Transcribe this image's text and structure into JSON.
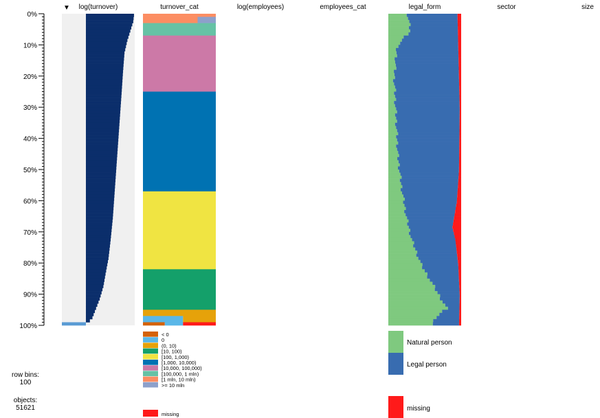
{
  "chart_data": {
    "type": "tableplot",
    "title_partial": "",
    "sort_indicator": "▼",
    "sorted_by": "log(turnover)",
    "columns": [
      "log(turnover)",
      "turnover_cat",
      "log(employees)",
      "employees_cat",
      "legal_form",
      "sector",
      "size"
    ],
    "y_axis": {
      "ticks": [
        "0%",
        "10%",
        "20%",
        "30%",
        "40%",
        "50%",
        "60%",
        "70%",
        "80%",
        "90%",
        "100%"
      ],
      "minor_ticks_per_interval": 10
    },
    "row_bins": 100,
    "objects": 51621,
    "log_turnover": {
      "description_values": "bar right edge as fraction of column width per row bin",
      "bar_left": 0.33,
      "profile": [
        [
          0,
          0.99
        ],
        [
          2,
          0.98
        ],
        [
          5,
          0.94
        ],
        [
          8,
          0.9
        ],
        [
          12,
          0.86
        ],
        [
          18,
          0.84
        ],
        [
          25,
          0.82
        ],
        [
          35,
          0.79
        ],
        [
          45,
          0.76
        ],
        [
          55,
          0.73
        ],
        [
          65,
          0.7
        ],
        [
          72,
          0.67
        ],
        [
          78,
          0.64
        ],
        [
          83,
          0.6
        ],
        [
          87,
          0.57
        ],
        [
          91,
          0.52
        ],
        [
          94,
          0.47
        ],
        [
          97,
          0.42
        ],
        [
          99,
          0.35
        ]
      ],
      "last_bin": {
        "left": 0.0,
        "right": 0.33,
        "color": "#5a9bd4"
      },
      "colors": {
        "bar": "#0b2e6b",
        "background": "#f0f0f0"
      }
    },
    "turnover_cat": {
      "categories": [
        "< 0",
        "0",
        "(0, 10)",
        "[10, 100)",
        "[100, 1,000)",
        "[1,000, 10,000)",
        "[10,000, 100,000)",
        "[100,000, 1 mln)",
        "[1 mln, 10 mln)",
        ">= 10 mln",
        "missing"
      ],
      "colors": [
        "#d4620a",
        "#5ab7e8",
        "#e6a20a",
        "#14a06a",
        "#f0e442",
        "#0072b2",
        "#cc79a7",
        "#66c2a5",
        "#fc8d62",
        "#8da0cb",
        "#ff1a1a"
      ],
      "segments": [
        {
          "from": 0,
          "to": 1,
          "cat": 8
        },
        {
          "from": 1,
          "to": 3,
          "cat": 8,
          "split": [
            [
              0.0,
              0.75,
              8
            ],
            [
              0.75,
              1.0,
              9
            ]
          ]
        },
        {
          "from": 3,
          "to": 7,
          "cat": 7
        },
        {
          "from": 7,
          "to": 25,
          "cat": 6
        },
        {
          "from": 25,
          "to": 57,
          "cat": 5
        },
        {
          "from": 57,
          "to": 82,
          "cat": 4
        },
        {
          "from": 82,
          "to": 95,
          "cat": 3
        },
        {
          "from": 95,
          "to": 97,
          "cat": 2
        },
        {
          "from": 97,
          "to": 99,
          "cat": 1,
          "split": [
            [
              0.0,
              0.55,
              1
            ],
            [
              0.55,
              1.0,
              2
            ]
          ]
        },
        {
          "from": 99,
          "to": 100,
          "cat": 0,
          "split": [
            [
              0.0,
              0.3,
              0
            ],
            [
              0.3,
              0.55,
              1
            ],
            [
              0.55,
              1.0,
              10
            ]
          ]
        }
      ]
    },
    "legal_form": {
      "categories": [
        "Natural person",
        "Legal person",
        "missing"
      ],
      "colors": [
        "#7fc97f",
        "#386cb0",
        "#ff1a1a"
      ],
      "natural_profile": [
        [
          0,
          0.27
        ],
        [
          5,
          0.3
        ],
        [
          10,
          0.12
        ],
        [
          20,
          0.08
        ],
        [
          30,
          0.1
        ],
        [
          45,
          0.13
        ],
        [
          55,
          0.18
        ],
        [
          65,
          0.25
        ],
        [
          72,
          0.32
        ],
        [
          80,
          0.45
        ],
        [
          88,
          0.65
        ],
        [
          94,
          0.8
        ],
        [
          97,
          0.65
        ],
        [
          100,
          0.6
        ]
      ],
      "missing_profile": [
        [
          0,
          0.05
        ],
        [
          10,
          0.04
        ],
        [
          30,
          0.02
        ],
        [
          50,
          0.03
        ],
        [
          60,
          0.06
        ],
        [
          68,
          0.12
        ],
        [
          72,
          0.08
        ],
        [
          80,
          0.04
        ],
        [
          90,
          0.02
        ],
        [
          100,
          0.03
        ]
      ]
    },
    "legend_turnover": {
      "labels": [
        "< 0",
        "0",
        "(0, 10)",
        "[10, 100)",
        "[100, 1,000)",
        "[1,000, 10,000)",
        "[10,000, 100,000)",
        "[100,000, 1 mln)",
        "[1 mln, 10 mln)",
        ">= 10 mln"
      ],
      "missing_label": "missing"
    },
    "legend_legal": {
      "labels": [
        "Natural person",
        "Legal person"
      ],
      "missing_label": "missing"
    }
  },
  "side_info": {
    "row_bins_label": "row bins:",
    "row_bins_value": "100",
    "objects_label": "objects:",
    "objects_value": "51621"
  }
}
